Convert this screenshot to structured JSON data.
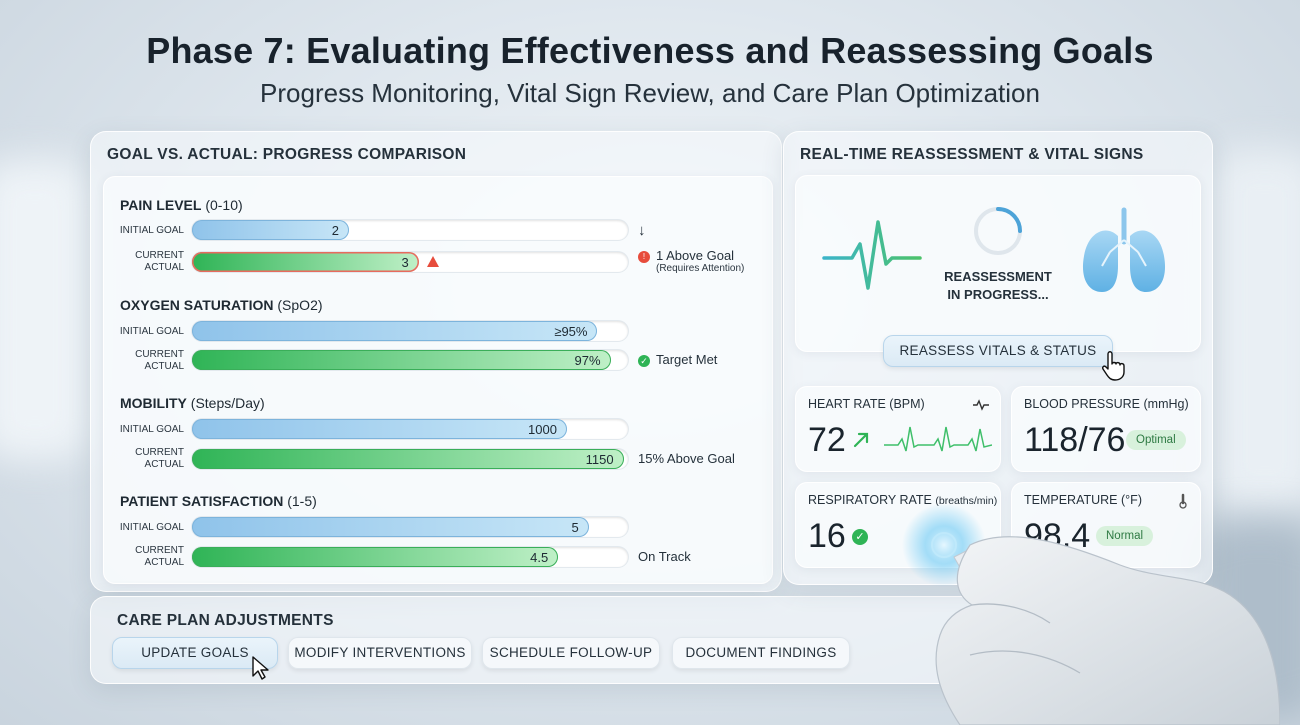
{
  "header": {
    "title": "Phase 7: Evaluating Effectiveness and Reassessing Goals",
    "subtitle": "Progress Monitoring, Vital Sign Review, and Care Plan Optimization"
  },
  "progress": {
    "title": "GOAL VS. ACTUAL: PROGRESS COMPARISON",
    "initial_label": "INITIAL GOAL",
    "current_label_1": "CURRENT",
    "current_label_2": "ACTUAL",
    "metrics": [
      {
        "name": "PAIN LEVEL",
        "unit": "(0-10)",
        "goal": "2",
        "goal_fraction": 0.36,
        "actual": "3",
        "actual_fraction": 0.52,
        "status": "1 Above Goal",
        "status_note": "(Requires Attention)",
        "state": "warning",
        "arrow": "↓"
      },
      {
        "name": "OXYGEN SATURATION",
        "unit": "(SpO2)",
        "goal": "≥95%",
        "goal_fraction": 0.93,
        "actual": "97%",
        "actual_fraction": 0.96,
        "status": "Target Met",
        "state": "ok"
      },
      {
        "name": "MOBILITY",
        "unit": "(Steps/Day)",
        "goal": "1000",
        "goal_fraction": 0.86,
        "actual": "1150",
        "actual_fraction": 0.99,
        "status": "15% Above Goal",
        "state": "plain"
      },
      {
        "name": "PATIENT SATISFACTION",
        "unit": "(1-5)",
        "goal": "5",
        "goal_fraction": 0.91,
        "actual": "4.5",
        "actual_fraction": 0.84,
        "status": "On Track",
        "state": "plain"
      }
    ]
  },
  "care_plan": {
    "title": "CARE PLAN ADJUSTMENTS",
    "buttons": [
      "UPDATE GOALS",
      "MODIFY INTERVENTIONS",
      "SCHEDULE FOLLOW-UP",
      "DOCUMENT FINDINGS"
    ]
  },
  "vitals": {
    "title": "REAL-TIME REASSESSMENT & VITAL SIGNS",
    "reassessment_line1": "REASSESSMENT",
    "reassessment_line2": "IN PROGRESS...",
    "reassess_button": "REASSESS VITALS & STATUS",
    "heart_rate": {
      "label": "HEART RATE",
      "unit": "(BPM)",
      "value": "72"
    },
    "blood_pressure": {
      "label": "BLOOD PRESSURE",
      "unit": "(mmHg)",
      "value": "118/76",
      "badge": "Optimal"
    },
    "respiratory": {
      "label": "RESPIRATORY RATE",
      "unit": "(breaths/min)",
      "value": "16"
    },
    "temperature": {
      "label": "TEMPERATURE",
      "unit": "(°F)",
      "value": "98.4",
      "badge": "Normal"
    }
  },
  "colors": {
    "accent_blue": "#8fc3ea",
    "accent_green": "#2fb456",
    "warning_red": "#e74c3c"
  }
}
